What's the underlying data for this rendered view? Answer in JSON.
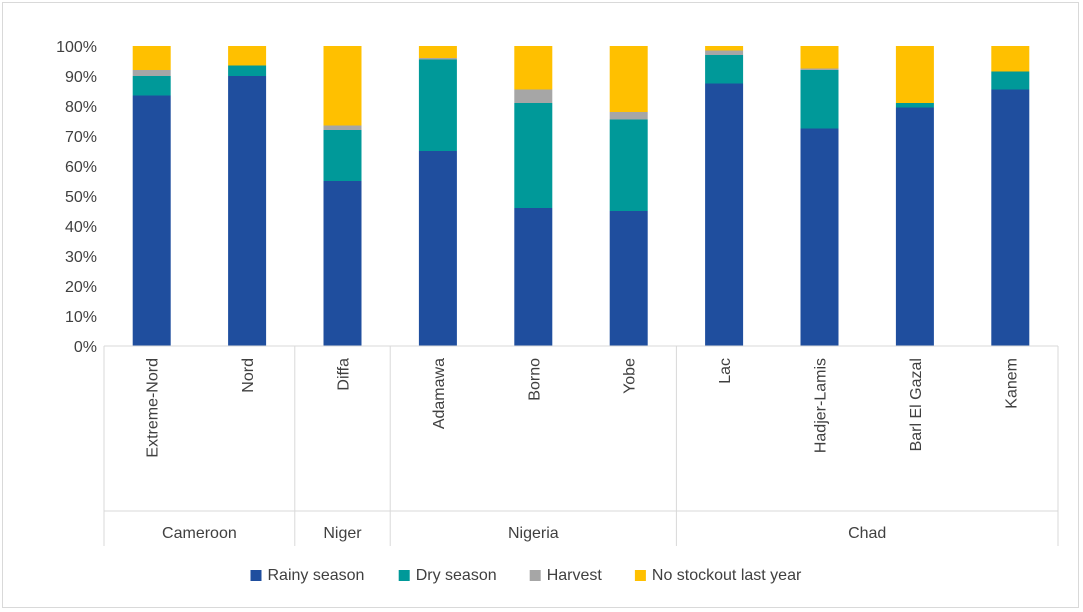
{
  "chart_data": {
    "type": "bar",
    "stacked": true,
    "percent_axis": true,
    "groups": [
      {
        "label": "Cameroon",
        "categories": [
          "Extreme-Nord",
          "Nord"
        ]
      },
      {
        "label": "Niger",
        "categories": [
          "Diffa"
        ]
      },
      {
        "label": "Nigeria",
        "categories": [
          "Adamawa",
          "Borno",
          "Yobe"
        ]
      },
      {
        "label": "Chad",
        "categories": [
          "Lac",
          "Hadjer-Lamis",
          "Barl El Gazal",
          "Kanem"
        ]
      }
    ],
    "categories": [
      "Extreme-Nord",
      "Nord",
      "Diffa",
      "Adamawa",
      "Borno",
      "Yobe",
      "Lac",
      "Hadjer-Lamis",
      "Barl El Gazal",
      "Kanem"
    ],
    "series": [
      {
        "name": "Rainy season",
        "color": "#1f4e9e",
        "values": [
          83.5,
          90,
          55,
          65,
          46,
          45,
          87.5,
          72.5,
          79.5,
          85.5
        ]
      },
      {
        "name": "Dry season",
        "color": "#009999",
        "values": [
          6.5,
          3.5,
          17,
          30.5,
          35,
          30.5,
          9.5,
          19.5,
          1.5,
          6
        ]
      },
      {
        "name": "Harvest",
        "color": "#a6a6a6",
        "values": [
          2,
          0,
          1.5,
          0.5,
          4.5,
          2.5,
          1.5,
          0.5,
          0,
          0
        ]
      },
      {
        "name": "No stockout last year",
        "color": "#ffc000",
        "values": [
          8,
          6.5,
          26.5,
          4,
          14.5,
          22,
          1.5,
          7.5,
          19,
          8.5
        ]
      }
    ],
    "y_ticks": [
      "0%",
      "10%",
      "20%",
      "30%",
      "40%",
      "50%",
      "60%",
      "70%",
      "80%",
      "90%",
      "100%"
    ],
    "ylim": [
      0,
      100
    ],
    "grid": false,
    "legend_position": "bottom"
  }
}
